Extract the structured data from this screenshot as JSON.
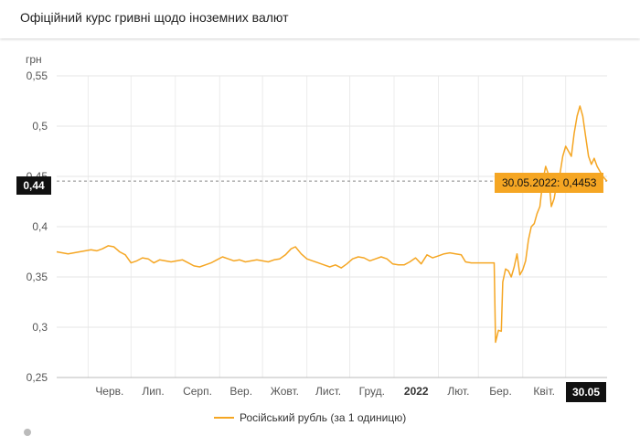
{
  "header": {
    "title": "Офіційний курс гривні щодо іноземних валют"
  },
  "chart_data": {
    "type": "line",
    "ylabel": "грн",
    "ylim": [
      0.25,
      0.55
    ],
    "yticks": [
      "0,55",
      "0,5",
      "0,45",
      "0,4",
      "0,35",
      "0,3",
      "0,25"
    ],
    "xticks": [
      "Черв.",
      "Лип.",
      "Серп.",
      "Вер.",
      "Жовт.",
      "Лист.",
      "Груд.",
      "2022",
      "Лют.",
      "Бер.",
      "Квіт."
    ],
    "legend_position": "bottom",
    "series": [
      {
        "name": "Російський рубль (за 1 одиницю)",
        "color": "#f5a623",
        "points": [
          [
            "2021-05-10",
            0.375
          ],
          [
            "2021-05-14",
            0.374
          ],
          [
            "2021-05-18",
            0.373
          ],
          [
            "2021-05-22",
            0.374
          ],
          [
            "2021-05-26",
            0.375
          ],
          [
            "2021-05-30",
            0.376
          ],
          [
            "2021-06-03",
            0.377
          ],
          [
            "2021-06-07",
            0.376
          ],
          [
            "2021-06-11",
            0.378
          ],
          [
            "2021-06-15",
            0.381
          ],
          [
            "2021-06-19",
            0.38
          ],
          [
            "2021-06-23",
            0.375
          ],
          [
            "2021-06-27",
            0.372
          ],
          [
            "2021-07-01",
            0.364
          ],
          [
            "2021-07-05",
            0.366
          ],
          [
            "2021-07-09",
            0.369
          ],
          [
            "2021-07-13",
            0.368
          ],
          [
            "2021-07-17",
            0.364
          ],
          [
            "2021-07-21",
            0.367
          ],
          [
            "2021-07-25",
            0.366
          ],
          [
            "2021-07-29",
            0.365
          ],
          [
            "2021-08-02",
            0.366
          ],
          [
            "2021-08-06",
            0.367
          ],
          [
            "2021-08-10",
            0.364
          ],
          [
            "2021-08-14",
            0.361
          ],
          [
            "2021-08-18",
            0.36
          ],
          [
            "2021-08-22",
            0.362
          ],
          [
            "2021-08-26",
            0.364
          ],
          [
            "2021-08-30",
            0.367
          ],
          [
            "2021-09-03",
            0.37
          ],
          [
            "2021-09-07",
            0.368
          ],
          [
            "2021-09-11",
            0.366
          ],
          [
            "2021-09-15",
            0.367
          ],
          [
            "2021-09-19",
            0.365
          ],
          [
            "2021-09-23",
            0.366
          ],
          [
            "2021-09-27",
            0.367
          ],
          [
            "2021-10-01",
            0.366
          ],
          [
            "2021-10-05",
            0.365
          ],
          [
            "2021-10-09",
            0.367
          ],
          [
            "2021-10-13",
            0.368
          ],
          [
            "2021-10-17",
            0.372
          ],
          [
            "2021-10-21",
            0.378
          ],
          [
            "2021-10-24",
            0.38
          ],
          [
            "2021-10-28",
            0.373
          ],
          [
            "2021-11-01",
            0.368
          ],
          [
            "2021-11-05",
            0.366
          ],
          [
            "2021-11-09",
            0.364
          ],
          [
            "2021-11-13",
            0.362
          ],
          [
            "2021-11-17",
            0.36
          ],
          [
            "2021-11-21",
            0.362
          ],
          [
            "2021-11-25",
            0.359
          ],
          [
            "2021-11-29",
            0.363
          ],
          [
            "2021-12-03",
            0.368
          ],
          [
            "2021-12-07",
            0.37
          ],
          [
            "2021-12-11",
            0.369
          ],
          [
            "2021-12-15",
            0.366
          ],
          [
            "2021-12-19",
            0.368
          ],
          [
            "2021-12-23",
            0.37
          ],
          [
            "2021-12-27",
            0.368
          ],
          [
            "2021-12-31",
            0.363
          ],
          [
            "2022-01-04",
            0.362
          ],
          [
            "2022-01-08",
            0.362
          ],
          [
            "2022-01-12",
            0.365
          ],
          [
            "2022-01-16",
            0.369
          ],
          [
            "2022-01-20",
            0.363
          ],
          [
            "2022-01-24",
            0.372
          ],
          [
            "2022-01-28",
            0.369
          ],
          [
            "2022-02-01",
            0.371
          ],
          [
            "2022-02-05",
            0.373
          ],
          [
            "2022-02-09",
            0.374
          ],
          [
            "2022-02-13",
            0.373
          ],
          [
            "2022-02-17",
            0.372
          ],
          [
            "2022-02-20",
            0.365
          ],
          [
            "2022-02-24",
            0.364
          ],
          [
            "2022-03-01",
            0.364
          ],
          [
            "2022-03-05",
            0.364
          ],
          [
            "2022-03-09",
            0.364
          ],
          [
            "2022-03-12",
            0.364
          ],
          [
            "2022-03-13",
            0.285
          ],
          [
            "2022-03-15",
            0.297
          ],
          [
            "2022-03-17",
            0.296
          ],
          [
            "2022-03-18",
            0.345
          ],
          [
            "2022-03-20",
            0.358
          ],
          [
            "2022-03-22",
            0.356
          ],
          [
            "2022-03-24",
            0.35
          ],
          [
            "2022-03-26",
            0.36
          ],
          [
            "2022-03-28",
            0.373
          ],
          [
            "2022-03-30",
            0.352
          ],
          [
            "2022-04-01",
            0.357
          ],
          [
            "2022-04-03",
            0.366
          ],
          [
            "2022-04-05",
            0.387
          ],
          [
            "2022-04-07",
            0.4
          ],
          [
            "2022-04-09",
            0.403
          ],
          [
            "2022-04-11",
            0.413
          ],
          [
            "2022-04-13",
            0.42
          ],
          [
            "2022-04-15",
            0.445
          ],
          [
            "2022-04-17",
            0.46
          ],
          [
            "2022-04-19",
            0.452
          ],
          [
            "2022-04-21",
            0.42
          ],
          [
            "2022-04-23",
            0.428
          ],
          [
            "2022-04-25",
            0.445
          ],
          [
            "2022-04-27",
            0.452
          ],
          [
            "2022-04-29",
            0.47
          ],
          [
            "2022-05-01",
            0.48
          ],
          [
            "2022-05-03",
            0.475
          ],
          [
            "2022-05-05",
            0.47
          ],
          [
            "2022-05-07",
            0.493
          ],
          [
            "2022-05-09",
            0.51
          ],
          [
            "2022-05-11",
            0.52
          ],
          [
            "2022-05-13",
            0.51
          ],
          [
            "2022-05-15",
            0.49
          ],
          [
            "2022-05-17",
            0.47
          ],
          [
            "2022-05-19",
            0.462
          ],
          [
            "2022-05-21",
            0.468
          ],
          [
            "2022-05-23",
            0.46
          ],
          [
            "2022-05-25",
            0.455
          ],
          [
            "2022-05-27",
            0.45
          ],
          [
            "2022-05-30",
            0.4453
          ]
        ]
      }
    ],
    "crosshair": {
      "y_label": "0,44",
      "x_label": "30.05",
      "tooltip": "30.05.2022: 0,4453"
    }
  }
}
